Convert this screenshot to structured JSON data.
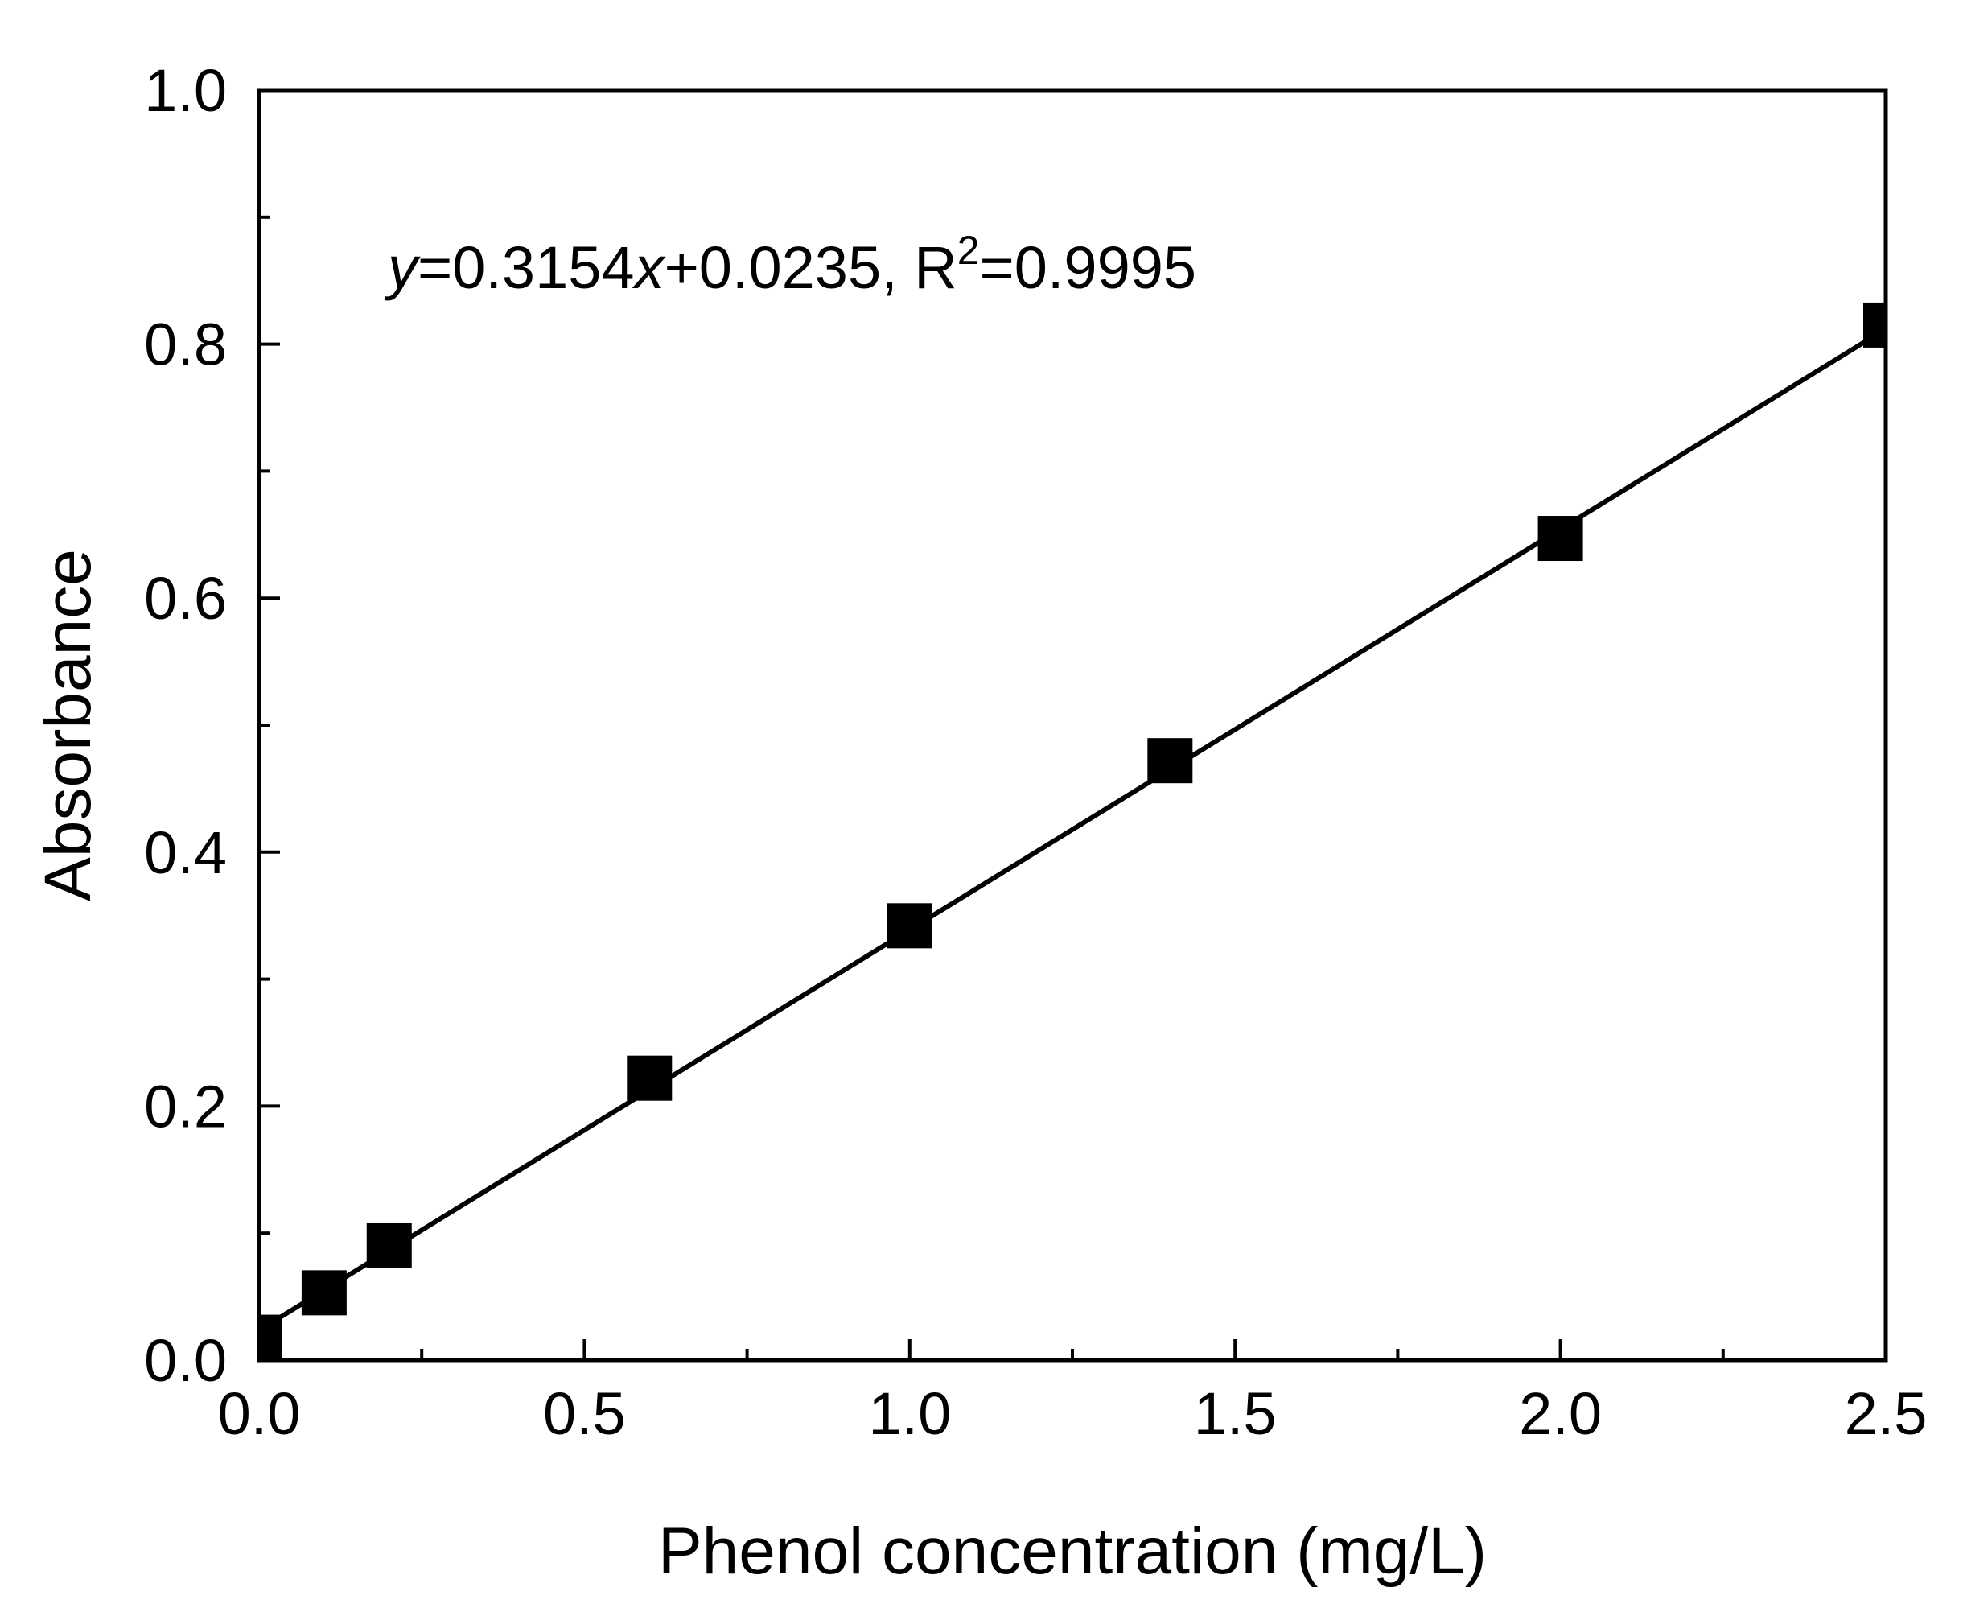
{
  "chart_data": {
    "type": "scatter",
    "title": "",
    "xlabel": "Phenol concentration (mg/L)",
    "ylabel": "Absorbance",
    "xlim": [
      0,
      2.5
    ],
    "ylim": [
      0,
      1.0
    ],
    "x_ticks": [
      0.0,
      0.5,
      1.0,
      1.5,
      2.0,
      2.5
    ],
    "x_tick_labels": [
      "0.0",
      "0.5",
      "1.0",
      "1.5",
      "2.0",
      "2.5"
    ],
    "y_ticks": [
      0.0,
      0.2,
      0.4,
      0.6,
      0.8,
      1.0
    ],
    "y_tick_labels": [
      "0.0",
      "0.2",
      "0.4",
      "0.6",
      "0.8",
      "1.0"
    ],
    "x_minor_step": 0.25,
    "y_minor_step": 0.1,
    "grid": false,
    "series": [
      {
        "name": "Absorbance",
        "marker": "square",
        "color": "#000000",
        "x": [
          0.0,
          0.1,
          0.2,
          0.6,
          1.0,
          1.4,
          2.0,
          2.5
        ],
        "y": [
          0.018,
          0.053,
          0.09,
          0.222,
          0.342,
          0.472,
          0.647,
          0.815
        ]
      }
    ],
    "fit": {
      "slope": 0.3154,
      "intercept": 0.0235,
      "x_range": [
        0.0,
        2.5
      ],
      "color": "#000000"
    },
    "annotation": {
      "y_var": "y",
      "middle": "=0.3154",
      "x_var": "x",
      "tail": "+0.0235, R",
      "sup": "2",
      "end": "=0.9995"
    }
  }
}
